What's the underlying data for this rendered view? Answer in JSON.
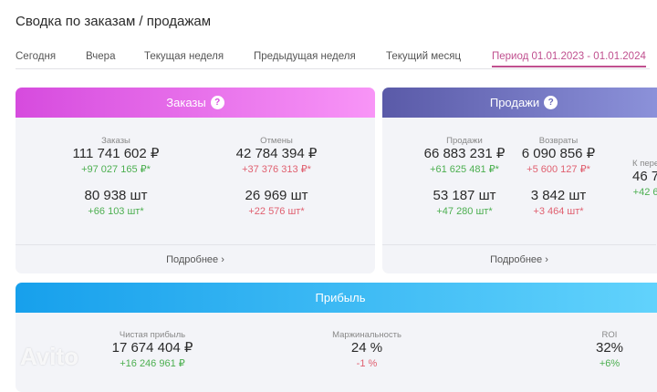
{
  "title": "Сводка по заказам / продажам",
  "tabs": [
    {
      "label": "Сегодня"
    },
    {
      "label": "Вчера"
    },
    {
      "label": "Текущая неделя"
    },
    {
      "label": "Предыдущая неделя"
    },
    {
      "label": "Текущий месяц"
    },
    {
      "label": "Период 01.01.2023 - 01.01.2024",
      "active": true
    }
  ],
  "orders": {
    "header": "Заказы",
    "help": "?",
    "more": "Подробнее ›",
    "gradient": [
      "#d64bde",
      "#f895f7"
    ],
    "cols": [
      {
        "label": "Заказы",
        "value": "111 741 602 ₽",
        "delta": "+97 027 165 ₽*",
        "qty": "80 938 шт",
        "qty_delta": "+66 103 шт*"
      },
      {
        "label": "Отмены",
        "value": "42 784 394 ₽",
        "delta": "+37 376 313 ₽*",
        "qty": "26 969 шт",
        "qty_delta": "+22 576 шт*"
      }
    ]
  },
  "sales": {
    "header": "Продажи",
    "help": "?",
    "more": "Подробнее ›",
    "gradient": [
      "#5a5aa8",
      "#8d93db"
    ],
    "cols": [
      {
        "label": "Продажи",
        "value": "66 883 231 ₽",
        "delta": "+61 625 481 ₽*",
        "qty": "53 187 шт",
        "qty_delta": "+47 280 шт*"
      },
      {
        "label": "Возвраты",
        "value": "6 090 856 ₽",
        "delta": "+5 600 127 ₽*",
        "qty": "3 842 шт",
        "qty_delta": "+3 464 шт*"
      },
      {
        "label": "К пере",
        "value": "46 7",
        "delta": "+42 6"
      }
    ]
  },
  "profit": {
    "header": "Прибыль",
    "gradient": [
      "#17a0ec",
      "#62d3fc"
    ],
    "cols": [
      {
        "label": "Чистая прибыль",
        "value": "17 674 404 ₽",
        "delta": "+16 246 961 ₽"
      },
      {
        "label": "Маржинальность",
        "value": "24 %",
        "delta": "-1 %"
      },
      {
        "label": "ROI",
        "value": "32%",
        "delta": "+6%"
      }
    ]
  },
  "watermark": "Avito"
}
